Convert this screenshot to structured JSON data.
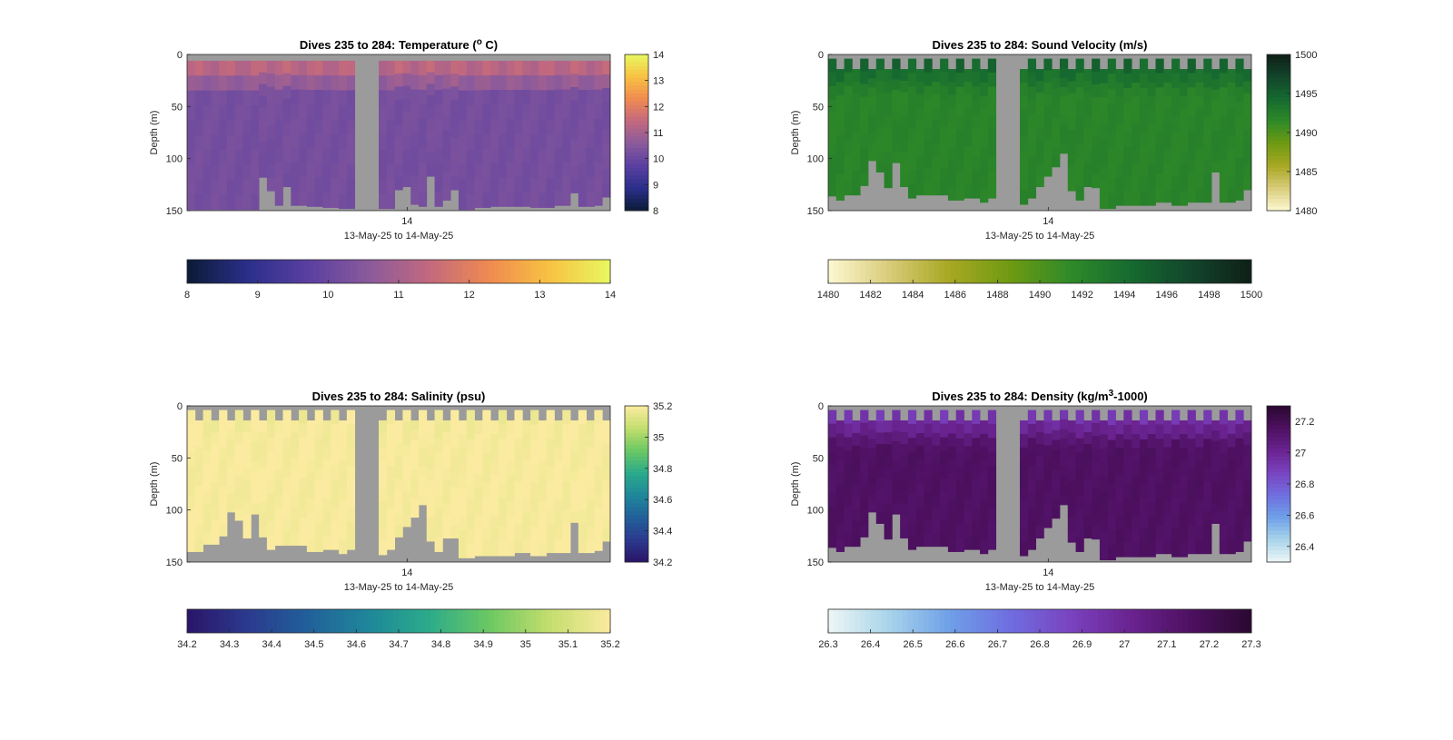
{
  "chart_data": [
    {
      "type": "heatmap",
      "title": "Dives 235 to 284: Temperature (",
      "title_sup": "o",
      "title_tail": " C)",
      "ylabel": "Depth (m)",
      "xlabel": "13-May-25 to 14-May-25",
      "x_ticks": [
        "14"
      ],
      "y_ticks": [
        0,
        50,
        100,
        150
      ],
      "ylim": [
        0,
        150
      ],
      "colorbar_side_ticks": [
        "14",
        "13",
        "12",
        "11",
        "10",
        "9",
        "8"
      ],
      "colorbar_side_values": [
        14,
        13,
        12,
        11,
        10,
        9,
        8
      ],
      "colorbar_bottom_ticks": [
        "8",
        "9",
        "10",
        "11",
        "12",
        "13",
        "14"
      ],
      "colorbar_bottom_values": [
        8,
        9,
        10,
        11,
        12,
        13,
        14
      ],
      "clim": [
        8,
        14
      ],
      "colormap": [
        "#0b1a36",
        "#2b2f8a",
        "#5a3fa0",
        "#8a5a9c",
        "#c2697e",
        "#f08a50",
        "#f8c242",
        "#e8f860"
      ],
      "surface_value": 11.8,
      "deep_value": 10.2,
      "gap_color": "#9b9b9b",
      "n_dives": 50,
      "dive_max_depth": [
        149,
        149,
        149,
        149,
        149,
        149,
        149,
        149,
        149,
        118,
        131,
        145,
        127,
        145,
        145,
        146,
        146,
        147,
        147,
        148,
        148,
        148,
        148,
        130,
        127,
        144,
        146,
        117,
        146,
        140,
        130,
        149,
        149,
        147,
        147,
        146,
        146,
        146,
        146,
        146,
        147,
        147,
        147,
        145,
        145,
        133,
        146,
        146,
        145,
        137
      ],
      "dive_min_depth": [
        6,
        6,
        6,
        6,
        6,
        6,
        6,
        6,
        6,
        6,
        6,
        6,
        6,
        6,
        6,
        6,
        6,
        6,
        6,
        6,
        6,
        6,
        6,
        6,
        6,
        6,
        6,
        6,
        6,
        6,
        6,
        6,
        6,
        6,
        6,
        6,
        6,
        6,
        6,
        6,
        6,
        6,
        6,
        6,
        6,
        6,
        6,
        6,
        6,
        6
      ],
      "gap_after_dive": 21
    },
    {
      "type": "heatmap",
      "title": "Dives 235 to 284: Sound Velocity (m/s)",
      "title_sup": "",
      "title_tail": "",
      "ylabel": "Depth (m)",
      "xlabel": "13-May-25 to 14-May-25",
      "x_ticks": [
        "14"
      ],
      "y_ticks": [
        0,
        50,
        100,
        150
      ],
      "ylim": [
        0,
        150
      ],
      "colorbar_side_ticks": [
        "1500",
        "1495",
        "1490",
        "1485",
        "1480"
      ],
      "colorbar_side_values": [
        1500,
        1495,
        1490,
        1485,
        1480
      ],
      "colorbar_bottom_ticks": [
        "1480",
        "1482",
        "1484",
        "1486",
        "1488",
        "1490",
        "1492",
        "1494",
        "1496",
        "1498",
        "1500"
      ],
      "colorbar_bottom_values": [
        1480,
        1482,
        1484,
        1486,
        1488,
        1490,
        1492,
        1494,
        1496,
        1498,
        1500
      ],
      "clim": [
        1480,
        1500
      ],
      "colormap": [
        "#fdf9d2",
        "#d9cc7a",
        "#a8a823",
        "#6f9a12",
        "#2f8a28",
        "#166a30",
        "#12452a",
        "#0f1f18"
      ],
      "surface_value": 1495.5,
      "deep_value": 1492.0,
      "gap_color": "#9b9b9b",
      "n_dives": 50,
      "dive_max_depth": [
        136,
        140,
        135,
        135,
        126,
        102,
        113,
        128,
        104,
        127,
        138,
        135,
        135,
        135,
        135,
        140,
        140,
        138,
        138,
        142,
        138,
        144,
        138,
        127,
        117,
        108,
        95,
        131,
        140,
        127,
        128,
        148,
        148,
        145,
        145,
        145,
        145,
        145,
        142,
        142,
        145,
        145,
        142,
        142,
        142,
        113,
        142,
        142,
        140,
        130
      ],
      "dive_min_depth": [
        4,
        14,
        4,
        14,
        4,
        14,
        4,
        14,
        4,
        14,
        4,
        14,
        4,
        14,
        4,
        14,
        4,
        14,
        4,
        14,
        4,
        14,
        4,
        14,
        4,
        14,
        4,
        14,
        4,
        14,
        4,
        14,
        4,
        14,
        4,
        14,
        4,
        14,
        4,
        14,
        4,
        14,
        4,
        14,
        4,
        14,
        4,
        14,
        4,
        14
      ],
      "gap_after_dive": 21
    },
    {
      "type": "heatmap",
      "title": "Dives 235 to 284: Salinity (psu)",
      "title_sup": "",
      "title_tail": "",
      "ylabel": "Depth (m)",
      "xlabel": "13-May-25 to 14-May-25",
      "x_ticks": [
        "14"
      ],
      "y_ticks": [
        0,
        50,
        100,
        150
      ],
      "ylim": [
        0,
        150
      ],
      "colorbar_side_ticks": [
        "35.2",
        "35",
        "34.8",
        "34.6",
        "34.4",
        "34.2"
      ],
      "colorbar_side_values": [
        35.2,
        35.0,
        34.8,
        34.6,
        34.4,
        34.2
      ],
      "colorbar_bottom_ticks": [
        "34.2",
        "34.3",
        "34.4",
        "34.5",
        "34.6",
        "34.7",
        "34.8",
        "34.9",
        "35",
        "35.1",
        "35.2"
      ],
      "colorbar_bottom_values": [
        34.2,
        34.3,
        34.4,
        34.5,
        34.6,
        34.7,
        34.8,
        34.9,
        35.0,
        35.1,
        35.2
      ],
      "clim": [
        34.2,
        35.2
      ],
      "colormap": [
        "#2a1468",
        "#2b3a8e",
        "#21609a",
        "#1f879a",
        "#2bab8a",
        "#6cc862",
        "#c4de6e",
        "#fbeba0"
      ],
      "surface_value": 35.19,
      "deep_value": 35.19,
      "gap_color": "#9b9b9b",
      "n_dives": 50,
      "dive_max_depth": [
        140,
        140,
        133,
        133,
        125,
        102,
        110,
        127,
        104,
        126,
        138,
        134,
        134,
        134,
        134,
        140,
        140,
        138,
        138,
        142,
        138,
        143,
        138,
        126,
        116,
        107,
        95,
        130,
        140,
        127,
        127,
        146,
        146,
        144,
        144,
        144,
        144,
        144,
        141,
        141,
        144,
        144,
        141,
        141,
        141,
        112,
        141,
        141,
        139,
        130
      ],
      "dive_min_depth": [
        4,
        14,
        4,
        14,
        4,
        14,
        4,
        14,
        4,
        14,
        4,
        14,
        4,
        14,
        4,
        14,
        4,
        14,
        4,
        14,
        4,
        14,
        4,
        14,
        4,
        14,
        4,
        14,
        4,
        14,
        4,
        14,
        4,
        14,
        4,
        14,
        4,
        14,
        4,
        14,
        4,
        14,
        4,
        14,
        4,
        14,
        4,
        14,
        4,
        14
      ],
      "gap_after_dive": 21
    },
    {
      "type": "heatmap",
      "title": "Dives 235 to 284: Density (kg/m",
      "title_sup": "3",
      "title_tail": "-1000)",
      "ylabel": "Depth (m)",
      "xlabel": "13-May-25 to 14-May-25",
      "x_ticks": [
        "14"
      ],
      "y_ticks": [
        0,
        50,
        100,
        150
      ],
      "ylim": [
        0,
        150
      ],
      "colorbar_side_ticks": [
        "27.2",
        "27",
        "26.8",
        "26.6",
        "26.4"
      ],
      "colorbar_side_values": [
        27.2,
        27.0,
        26.8,
        26.6,
        26.4
      ],
      "colorbar_bottom_ticks": [
        "26.3",
        "26.4",
        "26.5",
        "26.6",
        "26.7",
        "26.8",
        "26.9",
        "27",
        "27.1",
        "27.2",
        "27.3"
      ],
      "colorbar_bottom_values": [
        26.3,
        26.4,
        26.5,
        26.6,
        26.7,
        26.8,
        26.9,
        27.0,
        27.1,
        27.2,
        27.3
      ],
      "clim": [
        26.3,
        27.3
      ],
      "colormap": [
        "#eef6f6",
        "#a8d4ea",
        "#6fa0e8",
        "#6f6ee0",
        "#7a43c0",
        "#6a2390",
        "#4d1060",
        "#2a0830"
      ],
      "surface_value": 26.85,
      "deep_value": 27.15,
      "gap_color": "#9b9b9b",
      "n_dives": 50,
      "dive_max_depth": [
        136,
        140,
        135,
        135,
        126,
        102,
        113,
        128,
        104,
        127,
        138,
        135,
        135,
        135,
        135,
        140,
        140,
        138,
        138,
        142,
        138,
        144,
        138,
        127,
        117,
        108,
        95,
        131,
        140,
        127,
        128,
        148,
        148,
        145,
        145,
        145,
        145,
        145,
        142,
        142,
        145,
        145,
        142,
        142,
        142,
        113,
        142,
        142,
        140,
        130
      ],
      "dive_min_depth": [
        4,
        14,
        4,
        14,
        4,
        14,
        4,
        14,
        4,
        14,
        4,
        14,
        4,
        14,
        4,
        14,
        4,
        14,
        4,
        14,
        4,
        14,
        4,
        14,
        4,
        14,
        4,
        14,
        4,
        14,
        4,
        14,
        4,
        14,
        4,
        14,
        4,
        14,
        4,
        14,
        4,
        14,
        4,
        14,
        4,
        14,
        4,
        14,
        4,
        14
      ],
      "gap_after_dive": 21
    }
  ]
}
